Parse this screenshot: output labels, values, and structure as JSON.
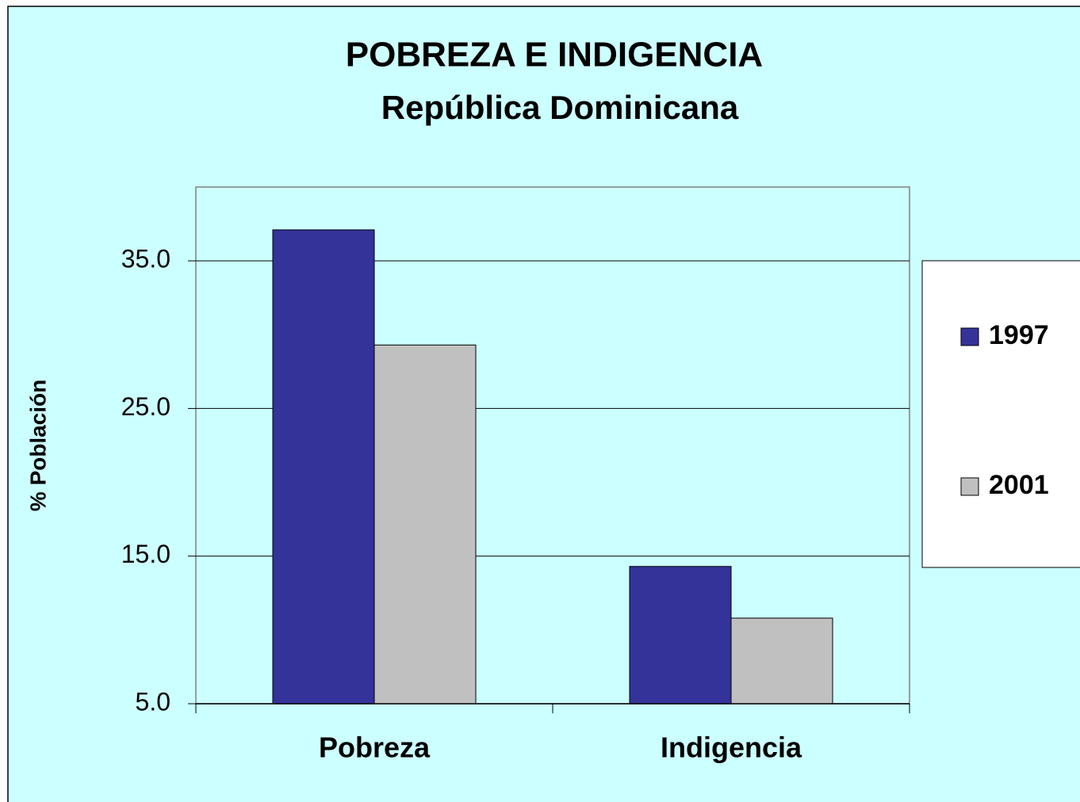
{
  "chart_data": {
    "type": "bar",
    "title": "POBREZA E INDIGENCIA",
    "subtitle": "República Dominicana",
    "y_label": "% Población",
    "categories": [
      "Pobreza",
      "Indigencia"
    ],
    "series": [
      {
        "name": "1997",
        "color": "#333399",
        "values": [
          37.1,
          14.3
        ]
      },
      {
        "name": "2001",
        "color": "#c0c0c0",
        "values": [
          29.3,
          10.8
        ]
      }
    ],
    "ylim": [
      5,
      40
    ],
    "yticks": [
      {
        "value": 5,
        "label": "5.0"
      },
      {
        "value": 15,
        "label": "15.0"
      },
      {
        "value": 25,
        "label": "25.0"
      },
      {
        "value": 35,
        "label": "35.0"
      }
    ],
    "grid": true,
    "legend": "right"
  }
}
